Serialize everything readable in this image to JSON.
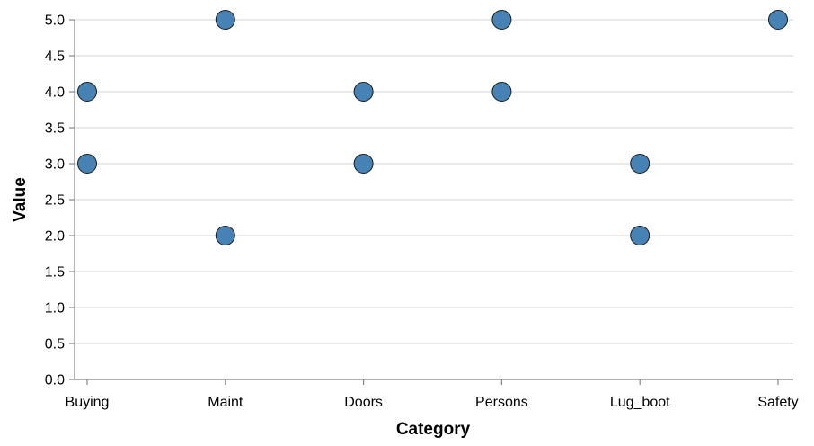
{
  "colors": {
    "point_fill": "#4682b4",
    "point_stroke": "#1a1a1a",
    "grid": "#dddddd",
    "axis": "#888888"
  },
  "chart_data": {
    "type": "scatter",
    "xlabel": "Category",
    "ylabel": "Value",
    "categories": [
      "Buying",
      "Maint",
      "Doors",
      "Persons",
      "Lug_boot",
      "Safety"
    ],
    "ylim": [
      0,
      5
    ],
    "yticks": [
      "0.0",
      "0.5",
      "1.0",
      "1.5",
      "2.0",
      "2.5",
      "3.0",
      "3.5",
      "4.0",
      "4.5",
      "5.0"
    ],
    "grid": "horizontal",
    "points": [
      {
        "x": "Buying",
        "y": 4
      },
      {
        "x": "Buying",
        "y": 3
      },
      {
        "x": "Maint",
        "y": 5
      },
      {
        "x": "Maint",
        "y": 2
      },
      {
        "x": "Doors",
        "y": 4
      },
      {
        "x": "Doors",
        "y": 3
      },
      {
        "x": "Persons",
        "y": 5
      },
      {
        "x": "Persons",
        "y": 4
      },
      {
        "x": "Lug_boot",
        "y": 3
      },
      {
        "x": "Lug_boot",
        "y": 2
      },
      {
        "x": "Safety",
        "y": 5
      }
    ]
  }
}
